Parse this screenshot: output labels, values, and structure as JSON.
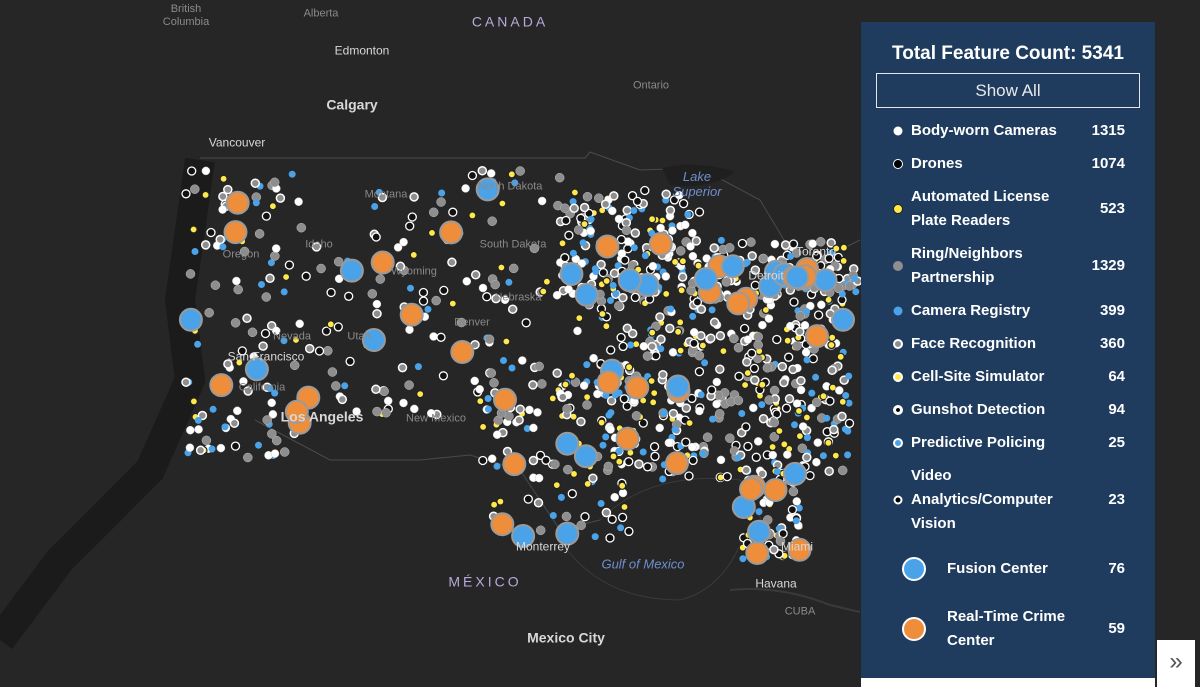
{
  "map": {
    "labels": [
      "British Columbia",
      "Alberta",
      "CANADA",
      "Edmonton",
      "Ontario",
      "Calgary",
      "Vancouver",
      "Lake Superior",
      "North Dakota",
      "Montana",
      "Idaho",
      "Oregon",
      "South Dakota",
      "Wyoming",
      "Nebraska",
      "Toronto",
      "Detroit",
      "Nevada",
      "Utah",
      "Denver",
      "San Francisco",
      "California",
      "Los Angeles",
      "New Mexico",
      "Gulf of Mexico",
      "MÉXICO",
      "Monterrey",
      "Havana",
      "CUBA",
      "Mexico City",
      "Miami"
    ]
  },
  "panel": {
    "title": "Total Feature Count: 5341",
    "button": "Show All",
    "items": [
      {
        "name": "Body-worn Cameras",
        "count": 1315
      },
      {
        "name": "Drones",
        "count": 1074
      },
      {
        "name": "Automated License Plate Readers",
        "count": 523
      },
      {
        "name": "Ring/Neighbors Partnership",
        "count": 1329
      },
      {
        "name": "Camera Registry",
        "count": 399
      },
      {
        "name": "Face Recognition",
        "count": 360
      },
      {
        "name": "Cell-Site Simulator",
        "count": 64
      },
      {
        "name": "Gunshot Detection",
        "count": 94
      },
      {
        "name": "Predictive Policing",
        "count": 25
      },
      {
        "name": "Video Analytics/Computer Vision",
        "count": 23
      },
      {
        "name": "Fusion Center",
        "count": 76
      },
      {
        "name": "Real-Time Crime Center",
        "count": 59
      }
    ]
  }
}
